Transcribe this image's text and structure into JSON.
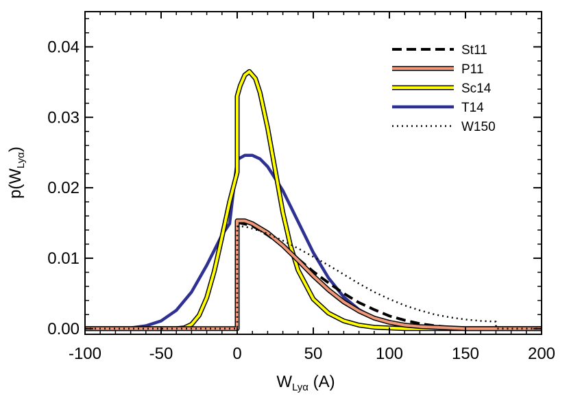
{
  "chart_data": {
    "type": "line",
    "title": "",
    "xlabel": {
      "main": "W",
      "sub": "Lyα",
      "suffix": " (A)"
    },
    "ylabel": {
      "prefix": "p(W",
      "sub": "Lyα",
      "suffix": ")"
    },
    "xlim": [
      -100,
      200
    ],
    "ylim": [
      -0.0008,
      0.045
    ],
    "xticks": [
      -100,
      -50,
      0,
      50,
      100,
      150,
      200
    ],
    "xtick_labels": [
      "-100",
      "-50",
      "0",
      "50",
      "100",
      "150",
      "200"
    ],
    "yticks": [
      0.0,
      0.01,
      0.02,
      0.03,
      0.04
    ],
    "ytick_labels": [
      "0.00",
      "0.01",
      "0.02",
      "0.03",
      "0.04"
    ],
    "grid": false,
    "legend_position": "top-right",
    "series": [
      {
        "name": "St11",
        "color": "#000000",
        "style": "dashed",
        "x": [
          -100,
          -0.1,
          0,
          0,
          10,
          20,
          30,
          40,
          50,
          60,
          70,
          80,
          90,
          100,
          110,
          120,
          130,
          140,
          150,
          160,
          170,
          180,
          190,
          200
        ],
        "y": [
          0,
          0,
          0,
          0.0151,
          0.0146,
          0.0133,
          0.0117,
          0.0099,
          0.0081,
          0.0065,
          0.005,
          0.0037,
          0.0027,
          0.0018,
          0.0012,
          0.0007,
          0.0004,
          0.0002,
          0.0001,
          0,
          0,
          0,
          0,
          0
        ]
      },
      {
        "name": "P11",
        "color": "#f09878",
        "style": "outlined",
        "x": [
          -100,
          -0.1,
          0,
          0,
          5,
          10,
          20,
          30,
          40,
          50,
          60,
          70,
          80,
          90,
          100,
          110,
          120,
          130,
          140,
          150,
          160,
          170,
          180,
          190,
          200
        ],
        "y": [
          0,
          0,
          0,
          0.0153,
          0.0153,
          0.0149,
          0.0136,
          0.0118,
          0.0097,
          0.0075,
          0.0055,
          0.0038,
          0.0025,
          0.0015,
          0.0009,
          0.0005,
          0.0003,
          0.0002,
          0.0001,
          0,
          0,
          0,
          0,
          0,
          0
        ]
      },
      {
        "name": "Sc14",
        "color": "#ffff00",
        "style": "outlined",
        "x": [
          -100,
          -40,
          -35,
          -30,
          -25,
          -20,
          -15,
          -10,
          -5,
          0,
          0,
          2,
          5,
          8,
          12,
          15,
          20,
          25,
          30,
          35,
          40,
          50,
          60,
          70,
          80,
          90,
          100,
          110,
          120,
          200
        ],
        "y": [
          0,
          0,
          0.0001,
          0.0006,
          0.0019,
          0.0044,
          0.0082,
          0.013,
          0.018,
          0.0222,
          0.033,
          0.0345,
          0.036,
          0.0365,
          0.0355,
          0.0335,
          0.0285,
          0.0225,
          0.0165,
          0.0118,
          0.0083,
          0.0042,
          0.0022,
          0.0011,
          0.0005,
          0.0002,
          0.0001,
          0,
          0,
          0
        ]
      },
      {
        "name": "T14",
        "color": "#2e3192",
        "style": "solid",
        "x": [
          -100,
          -80,
          -70,
          -60,
          -50,
          -40,
          -30,
          -20,
          -10,
          -5,
          0,
          5,
          10,
          15,
          20,
          30,
          40,
          50,
          60,
          70,
          80,
          90,
          100,
          110,
          120,
          130,
          140,
          150,
          200
        ],
        "y": [
          0,
          0,
          0.0001,
          0.0004,
          0.0011,
          0.0026,
          0.0052,
          0.009,
          0.0133,
          0.0149,
          0.024,
          0.0246,
          0.0246,
          0.0241,
          0.023,
          0.0196,
          0.0152,
          0.0108,
          0.0072,
          0.0045,
          0.0027,
          0.0015,
          0.0008,
          0.0004,
          0.0002,
          0.0001,
          0,
          0,
          0
        ]
      },
      {
        "name": "W150",
        "color": "#000000",
        "style": "dotted",
        "x": [
          -100,
          -0.1,
          0,
          0,
          5,
          10,
          20,
          30,
          40,
          50,
          60,
          70,
          80,
          90,
          100,
          110,
          120,
          130,
          140,
          150,
          160,
          170,
          170.1,
          200
        ],
        "y": [
          0,
          0,
          0,
          0.0145,
          0.0145,
          0.0142,
          0.0135,
          0.0125,
          0.0114,
          0.0102,
          0.009,
          0.0077,
          0.0064,
          0.0052,
          0.0042,
          0.0033,
          0.0026,
          0.002,
          0.0016,
          0.0013,
          0.0011,
          0.001,
          0,
          0
        ]
      }
    ]
  }
}
